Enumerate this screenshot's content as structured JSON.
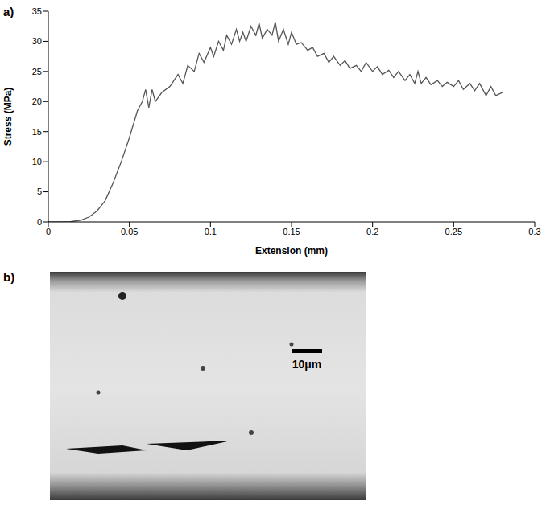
{
  "chart_data": {
    "type": "line",
    "x_label": "Extension (mm)",
    "y_label": "Stress (MPa)",
    "xlim": [
      0,
      0.3
    ],
    "xticks": [
      0,
      0.05,
      0.1,
      0.15,
      0.2,
      0.25,
      0.3
    ],
    "ylim": [
      0,
      35
    ],
    "yticks": [
      0,
      5,
      10,
      15,
      20,
      25,
      30,
      35
    ],
    "grid": false,
    "series": [
      {
        "name": "Stress",
        "color": "#555555",
        "x": [
          0,
          0.013,
          0.02,
          0.025,
          0.03,
          0.035,
          0.04,
          0.045,
          0.05,
          0.055,
          0.058,
          0.06,
          0.062,
          0.064,
          0.066,
          0.07,
          0.075,
          0.08,
          0.083,
          0.086,
          0.09,
          0.093,
          0.096,
          0.1,
          0.102,
          0.105,
          0.108,
          0.11,
          0.113,
          0.116,
          0.118,
          0.12,
          0.122,
          0.125,
          0.128,
          0.13,
          0.132,
          0.135,
          0.138,
          0.14,
          0.142,
          0.145,
          0.148,
          0.15,
          0.153,
          0.156,
          0.16,
          0.163,
          0.166,
          0.17,
          0.173,
          0.176,
          0.18,
          0.183,
          0.186,
          0.19,
          0.193,
          0.196,
          0.2,
          0.203,
          0.206,
          0.21,
          0.213,
          0.216,
          0.22,
          0.223,
          0.226,
          0.228,
          0.23,
          0.233,
          0.236,
          0.24,
          0.243,
          0.246,
          0.25,
          0.253,
          0.256,
          0.26,
          0.263,
          0.266,
          0.27,
          0.273,
          0.276,
          0.28
        ],
        "values": [
          0,
          0,
          0.3,
          0.8,
          1.8,
          3.5,
          6.5,
          10,
          14,
          18.5,
          20,
          22,
          19,
          22,
          20,
          21.5,
          22.5,
          24.5,
          23,
          26,
          25,
          28,
          26.5,
          29,
          27.5,
          30,
          28.5,
          31,
          29.5,
          32,
          30,
          31.5,
          30,
          32.5,
          31,
          33,
          30.5,
          32,
          31,
          33.2,
          30,
          32,
          29.5,
          31.5,
          29.5,
          29.8,
          28.5,
          29,
          27.5,
          28,
          26.5,
          27.5,
          26,
          26.8,
          25.5,
          26,
          25,
          26.5,
          25,
          25.8,
          24.5,
          25.2,
          24,
          25,
          23.5,
          24.5,
          23,
          25,
          23,
          24,
          22.8,
          23.5,
          22.5,
          23.2,
          22.5,
          23.5,
          22,
          23,
          21.8,
          23,
          21,
          22.5,
          21,
          21.5
        ]
      }
    ]
  },
  "panel_labels": [
    "a)",
    "b)"
  ],
  "micrograph": {
    "scale_bar": "10μm"
  }
}
